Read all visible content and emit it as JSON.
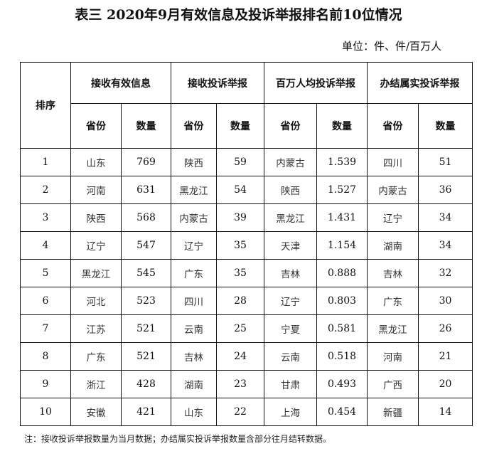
{
  "title": "表三 2020年9月有效信息及投诉举报排名前10位情况",
  "unit": "单位：件、件/百万人",
  "headers": {
    "rank": "排序",
    "groups": [
      "接收有效信息",
      "接收投诉举报",
      "百万人均投诉举报",
      "办结属实投诉举报"
    ],
    "province": "省份",
    "count": "数量"
  },
  "rows": [
    [
      "1",
      "山东",
      "769",
      "陕西",
      "59",
      "内蒙古",
      "1.539",
      "四川",
      "51"
    ],
    [
      "2",
      "河南",
      "631",
      "黑龙江",
      "54",
      "陕西",
      "1.527",
      "内蒙古",
      "36"
    ],
    [
      "3",
      "陕西",
      "568",
      "内蒙古",
      "39",
      "黑龙江",
      "1.431",
      "辽宁",
      "34"
    ],
    [
      "4",
      "辽宁",
      "547",
      "辽宁",
      "35",
      "天津",
      "1.154",
      "湖南",
      "34"
    ],
    [
      "5",
      "黑龙江",
      "545",
      "广东",
      "35",
      "吉林",
      "0.888",
      "吉林",
      "32"
    ],
    [
      "6",
      "河北",
      "523",
      "四川",
      "28",
      "辽宁",
      "0.803",
      "广东",
      "30"
    ],
    [
      "7",
      "江苏",
      "521",
      "云南",
      "25",
      "宁夏",
      "0.581",
      "黑龙江",
      "26"
    ],
    [
      "8",
      "广东",
      "521",
      "吉林",
      "24",
      "云南",
      "0.518",
      "河南",
      "21"
    ],
    [
      "9",
      "浙江",
      "428",
      "湖南",
      "23",
      "甘肃",
      "0.493",
      "广西",
      "20"
    ],
    [
      "10",
      "安徽",
      "421",
      "山东",
      "22",
      "上海",
      "0.454",
      "新疆",
      "14"
    ]
  ],
  "note": "注：接收投诉举报数量为当月数据；办结属实投诉举报数量含部分往月结转数据。"
}
